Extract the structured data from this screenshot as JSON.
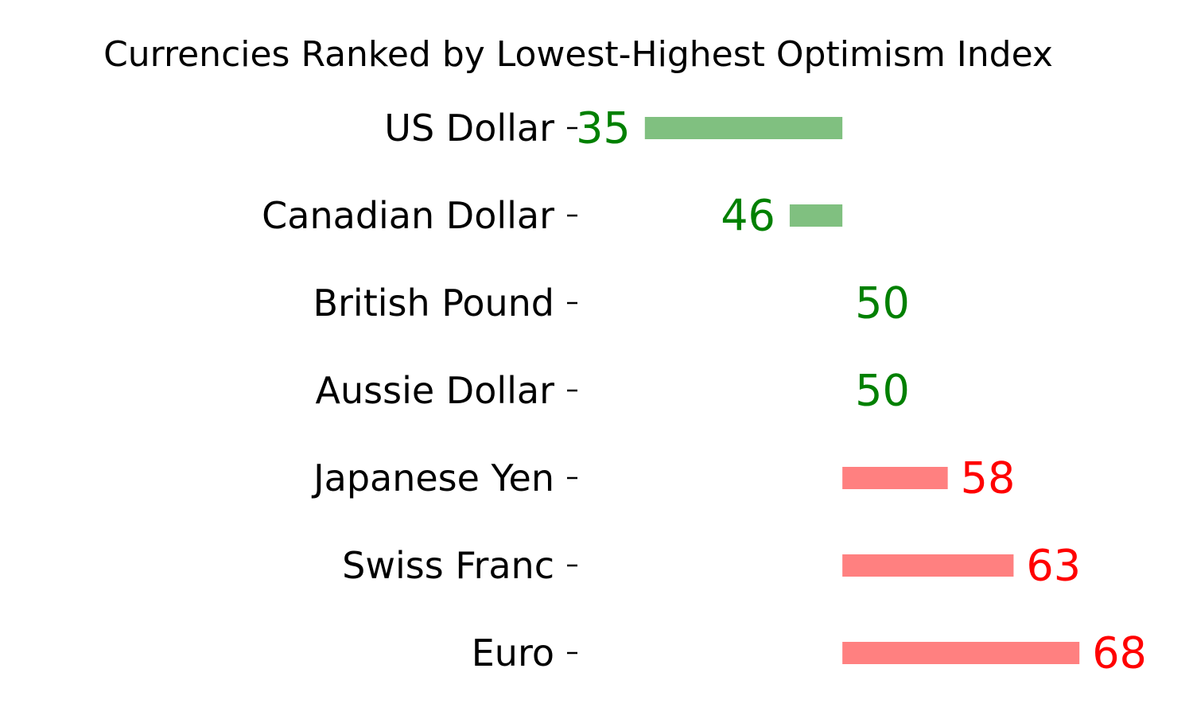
{
  "chart_data": {
    "type": "bar",
    "orientation": "horizontal",
    "title": "Currencies Ranked by Lowest-Highest Optimism Index",
    "xlabel": "",
    "ylabel": "",
    "baseline": 50,
    "xlim": [
      30,
      73
    ],
    "categories": [
      "US Dollar",
      "Canadian Dollar",
      "British Pound",
      "Aussie Dollar",
      "Japanese Yen",
      "Swiss Franc",
      "Euro"
    ],
    "values": [
      35,
      46,
      50,
      50,
      58,
      63,
      68
    ],
    "colors": {
      "below_or_equal_baseline_bar": "#80c080",
      "below_or_equal_baseline_label": "#008000",
      "above_baseline_bar": "#ff8080",
      "above_baseline_label": "#ff0000"
    },
    "grid": false,
    "legend": "none"
  }
}
